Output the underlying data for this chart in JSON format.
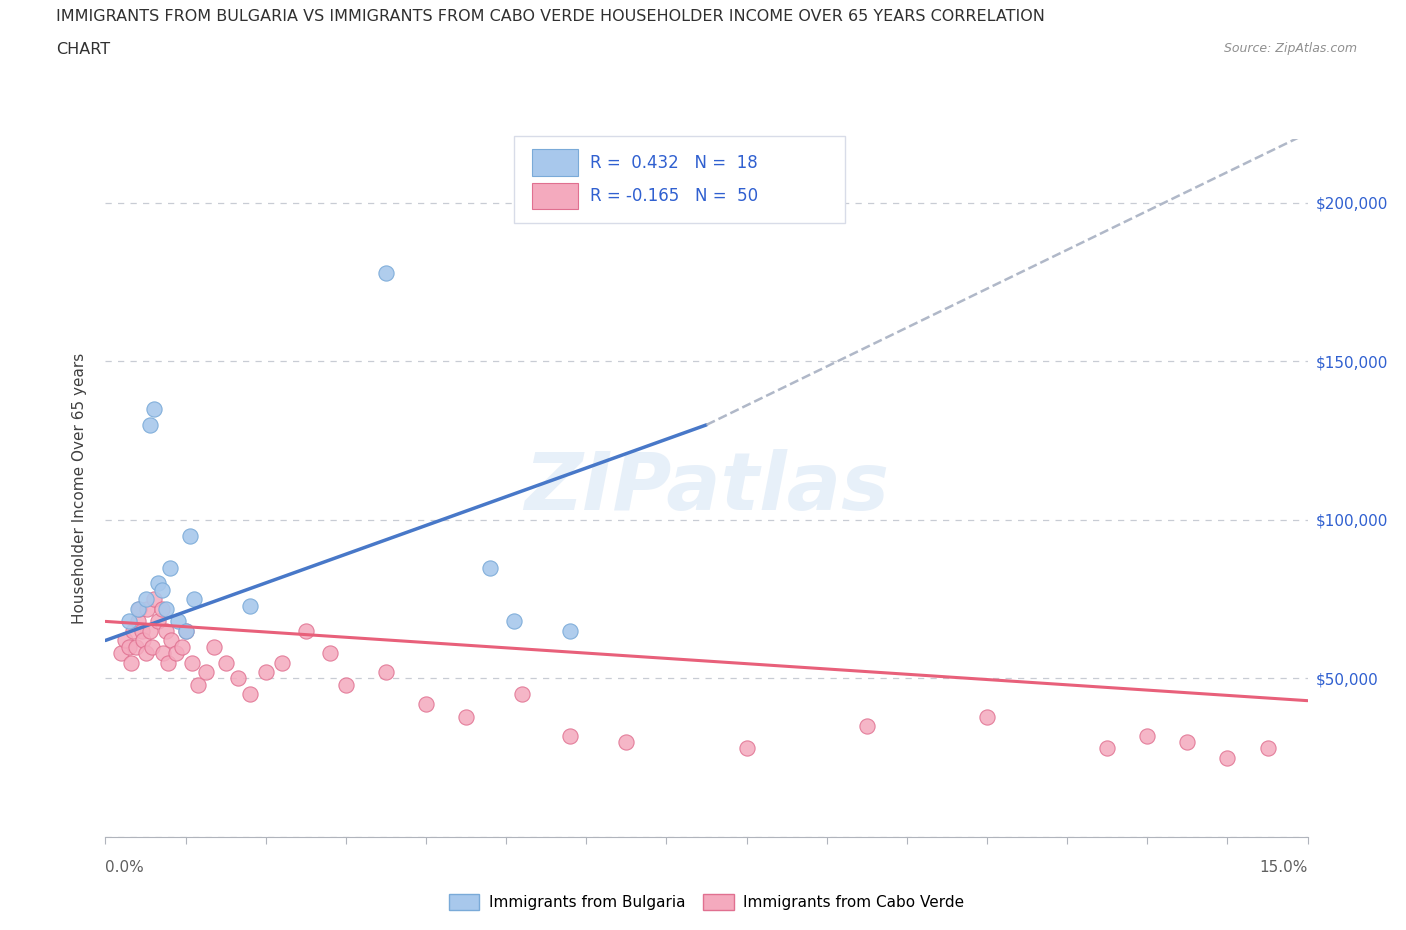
{
  "title_line1": "IMMIGRANTS FROM BULGARIA VS IMMIGRANTS FROM CABO VERDE HOUSEHOLDER INCOME OVER 65 YEARS CORRELATION",
  "title_line2": "CHART",
  "source_text": "Source: ZipAtlas.com",
  "ylabel": "Householder Income Over 65 years",
  "xlim": [
    0.0,
    15.0
  ],
  "ylim": [
    0,
    220000
  ],
  "yticks": [
    0,
    50000,
    100000,
    150000,
    200000
  ],
  "bulgaria_color": "#a8c8ec",
  "bulgaria_edge": "#7aaad8",
  "cabo_verde_color": "#f4aabe",
  "cabo_verde_edge": "#e07090",
  "trend_bulgaria_color": "#4878c8",
  "trend_cabo_verde_color": "#e8607a",
  "trend_ext_color": "#b0b8c8",
  "grid_color": "#c8ccd4",
  "watermark": "ZIPatlas",
  "r_color": "#3060d0",
  "yaxis_right_color": "#3060d0",
  "legend_box_color": "#d8dce8",
  "bulgaria_trend_x0": 0.0,
  "bulgaria_trend_y0": 62000,
  "bulgaria_trend_x1": 7.5,
  "bulgaria_trend_y1": 130000,
  "bulgaria_trend_ext_x1": 15.0,
  "bulgaria_trend_ext_y1": 222000,
  "cabo_verde_trend_x0": 0.0,
  "cabo_verde_trend_y0": 68000,
  "cabo_verde_trend_x1": 15.0,
  "cabo_verde_trend_y1": 43000,
  "bulgaria_x": [
    0.3,
    0.4,
    0.5,
    0.55,
    0.6,
    0.65,
    0.7,
    0.75,
    0.8,
    0.9,
    1.0,
    1.05,
    1.1,
    1.8,
    3.5,
    4.8,
    5.1,
    5.8
  ],
  "bulgaria_y": [
    68000,
    72000,
    75000,
    130000,
    135000,
    80000,
    78000,
    72000,
    85000,
    68000,
    65000,
    95000,
    75000,
    73000,
    178000,
    85000,
    68000,
    65000
  ],
  "cabo_verde_x": [
    0.2,
    0.25,
    0.3,
    0.32,
    0.35,
    0.38,
    0.4,
    0.42,
    0.45,
    0.47,
    0.5,
    0.52,
    0.55,
    0.58,
    0.6,
    0.65,
    0.7,
    0.72,
    0.75,
    0.78,
    0.82,
    0.88,
    0.95,
    1.0,
    1.08,
    1.15,
    1.25,
    1.35,
    1.5,
    1.65,
    1.8,
    2.0,
    2.2,
    2.5,
    2.8,
    3.0,
    3.5,
    4.0,
    4.5,
    5.2,
    5.8,
    6.5,
    8.0,
    9.5,
    11.0,
    12.5,
    13.0,
    13.5,
    14.0,
    14.5
  ],
  "cabo_verde_y": [
    58000,
    62000,
    60000,
    55000,
    65000,
    60000,
    68000,
    72000,
    65000,
    62000,
    58000,
    72000,
    65000,
    60000,
    75000,
    68000,
    72000,
    58000,
    65000,
    55000,
    62000,
    58000,
    60000,
    65000,
    55000,
    48000,
    52000,
    60000,
    55000,
    50000,
    45000,
    52000,
    55000,
    65000,
    58000,
    48000,
    52000,
    42000,
    38000,
    45000,
    32000,
    30000,
    28000,
    35000,
    38000,
    28000,
    32000,
    30000,
    25000,
    28000
  ]
}
